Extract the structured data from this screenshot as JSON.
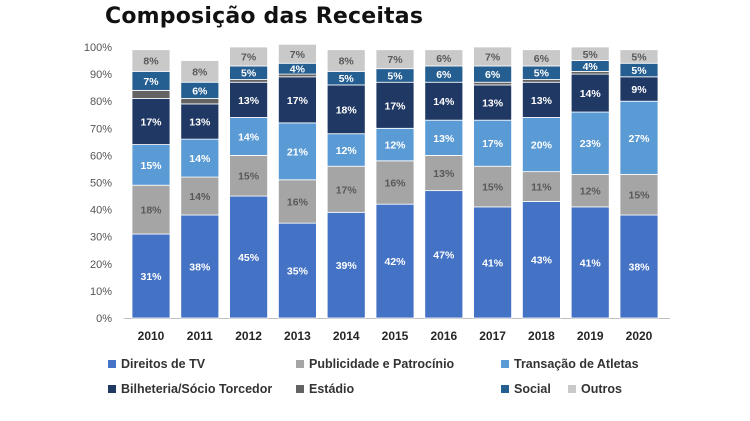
{
  "chart_data": {
    "type": "bar",
    "stacked": true,
    "title": "Composição das Receitas",
    "categories": [
      "2010",
      "2011",
      "2012",
      "2013",
      "2014",
      "2015",
      "2016",
      "2017",
      "2018",
      "2019",
      "2020"
    ],
    "y_ticks": [
      "0%",
      "10%",
      "20%",
      "30%",
      "40%",
      "50%",
      "60%",
      "70%",
      "80%",
      "90%",
      "100%"
    ],
    "ylim": [
      0,
      100
    ],
    "grid": false,
    "legend_position": "bottom",
    "series": [
      {
        "name": "Direitos de TV",
        "color": "#4472C4",
        "values": [
          31,
          38,
          45,
          35,
          39,
          42,
          47,
          41,
          43,
          41,
          38
        ],
        "labels": [
          "31%",
          "38%",
          "45%",
          "35%",
          "39%",
          "42%",
          "47%",
          "41%",
          "43%",
          "41%",
          "38%"
        ]
      },
      {
        "name": "Publicidade e Patrocínio",
        "color": "#A5A5A5",
        "values": [
          18,
          14,
          15,
          16,
          17,
          16,
          13,
          15,
          11,
          12,
          15
        ],
        "labels": [
          "18%",
          "14%",
          "15%",
          "16%",
          "17%",
          "16%",
          "13%",
          "15%",
          "11%",
          "12%",
          "15%"
        ]
      },
      {
        "name": "Transação de Atletas",
        "color": "#5B9BD5",
        "values": [
          15,
          14,
          14,
          21,
          12,
          12,
          13,
          17,
          20,
          23,
          27
        ],
        "labels": [
          "15%",
          "14%",
          "14%",
          "21%",
          "12%",
          "12%",
          "13%",
          "17%",
          "20%",
          "23%",
          "27%"
        ]
      },
      {
        "name": "Bilheteria/Sócio Torcedor",
        "color": "#203864",
        "values": [
          17,
          13,
          13,
          17,
          18,
          17,
          14,
          13,
          13,
          14,
          9
        ],
        "labels": [
          "17%",
          "13%",
          "13%",
          "17%",
          "18%",
          "17%",
          "14%",
          "13%",
          "13%",
          "14%",
          "9%"
        ]
      },
      {
        "name": "Estádio",
        "color": "#636363",
        "values": [
          3,
          2,
          1,
          1,
          0,
          0,
          0,
          1,
          1,
          1,
          0
        ],
        "labels": [
          "",
          "",
          "",
          "",
          "",
          "",
          "",
          "",
          "",
          "",
          ""
        ]
      },
      {
        "name": "Social",
        "color": "#255E91",
        "values": [
          7,
          6,
          5,
          4,
          5,
          5,
          6,
          6,
          5,
          4,
          5
        ],
        "labels": [
          "7%",
          "6%",
          "5%",
          "4%",
          "5%",
          "5%",
          "6%",
          "6%",
          "5%",
          "4%",
          "5%"
        ]
      },
      {
        "name": "Outros",
        "color": "#C9C9C9",
        "values": [
          8,
          8,
          7,
          7,
          8,
          7,
          6,
          7,
          6,
          5,
          5
        ],
        "labels": [
          "8%",
          "8%",
          "7%",
          "7%",
          "8%",
          "7%",
          "6%",
          "7%",
          "6%",
          "5%",
          "5%"
        ]
      }
    ]
  }
}
